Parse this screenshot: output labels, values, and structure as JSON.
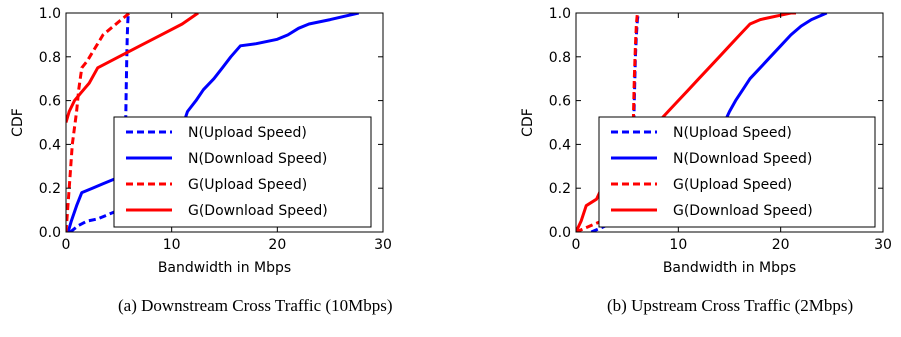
{
  "chart_data": [
    {
      "type": "line",
      "caption": "(a) Downstream Cross Traffic (10Mbps)",
      "xlabel": "Bandwidth in Mbps",
      "ylabel": "CDF",
      "xlim": [
        0,
        30
      ],
      "ylim": [
        0,
        1.0
      ],
      "xticks": [
        "0",
        "10",
        "20",
        "30"
      ],
      "yticks": [
        "0.0",
        "0.2",
        "0.4",
        "0.6",
        "0.8",
        "1.0"
      ],
      "grid": false,
      "legend_position": "lower-right",
      "series": [
        {
          "name": "N(Upload Speed)",
          "color": "#0000ff",
          "dash": "dashed",
          "x": [
            0.4,
            1.2,
            2.0,
            3.0,
            4.0,
            5.0,
            5.3,
            5.5,
            5.6,
            5.65,
            5.7,
            5.75,
            5.8,
            5.85,
            5.9
          ],
          "y": [
            0.0,
            0.03,
            0.05,
            0.06,
            0.08,
            0.1,
            0.12,
            0.2,
            0.35,
            0.5,
            0.65,
            0.8,
            0.9,
            0.96,
            1.0
          ]
        },
        {
          "name": "N(Download Speed)",
          "color": "#0000ff",
          "dash": "solid",
          "x": [
            0.2,
            0.5,
            1.0,
            1.5,
            2.5,
            3.5,
            5.0,
            6.0,
            8.0,
            10.0,
            10.8,
            11.5,
            12.3,
            13.0,
            14.0,
            14.8,
            15.6,
            16.5,
            18.0,
            20.0,
            21.0,
            22.0,
            23.0,
            25.0,
            27.7
          ],
          "y": [
            0.0,
            0.05,
            0.12,
            0.18,
            0.2,
            0.22,
            0.25,
            0.28,
            0.32,
            0.38,
            0.45,
            0.55,
            0.6,
            0.65,
            0.7,
            0.75,
            0.8,
            0.85,
            0.86,
            0.88,
            0.9,
            0.93,
            0.95,
            0.97,
            1.0
          ]
        },
        {
          "name": "G(Upload Speed)",
          "color": "#ff0000",
          "dash": "dashed",
          "x": [
            0.0,
            0.3,
            0.6,
            1.0,
            1.2,
            1.5,
            2.0,
            2.5,
            3.0,
            3.5,
            4.5,
            5.5,
            6.0
          ],
          "y": [
            0.0,
            0.2,
            0.4,
            0.55,
            0.65,
            0.75,
            0.78,
            0.82,
            0.86,
            0.9,
            0.94,
            0.98,
            1.0
          ]
        },
        {
          "name": "G(Download Speed)",
          "color": "#ff0000",
          "dash": "solid",
          "x": [
            0.0,
            0.3,
            0.8,
            1.5,
            2.2,
            3.0,
            5.0,
            7.0,
            9.0,
            11.0,
            12.5
          ],
          "y": [
            0.5,
            0.55,
            0.6,
            0.64,
            0.68,
            0.75,
            0.8,
            0.85,
            0.9,
            0.95,
            1.0
          ]
        }
      ]
    },
    {
      "type": "line",
      "caption": "(b) Upstream Cross Traffic (2Mbps)",
      "xlabel": "Bandwidth in Mbps",
      "ylabel": "CDF",
      "xlim": [
        0,
        30
      ],
      "ylim": [
        0,
        1.0
      ],
      "xticks": [
        "0",
        "10",
        "20",
        "30"
      ],
      "yticks": [
        "0.0",
        "0.2",
        "0.4",
        "0.6",
        "0.8",
        "1.0"
      ],
      "grid": false,
      "legend_position": "lower-right",
      "series": [
        {
          "name": "N(Upload Speed)",
          "color": "#0000ff",
          "dash": "dashed",
          "x": [
            1.5,
            2.5,
            3.5,
            4.5,
            5.0,
            5.4,
            5.6,
            5.7,
            5.8,
            5.9,
            6.0,
            6.1
          ],
          "y": [
            0.0,
            0.02,
            0.04,
            0.06,
            0.1,
            0.2,
            0.4,
            0.6,
            0.8,
            0.9,
            0.97,
            1.0
          ]
        },
        {
          "name": "N(Download Speed)",
          "color": "#0000ff",
          "dash": "solid",
          "x": [
            5.0,
            6.0,
            7.5,
            9.0,
            11.0,
            13.0,
            14.5,
            15.0,
            15.6,
            16.3,
            17.0,
            18.0,
            19.0,
            20.0,
            21.0,
            22.0,
            23.0,
            24.5
          ],
          "y": [
            0.15,
            0.18,
            0.22,
            0.28,
            0.36,
            0.45,
            0.5,
            0.55,
            0.6,
            0.65,
            0.7,
            0.75,
            0.8,
            0.85,
            0.9,
            0.94,
            0.97,
            1.0
          ]
        },
        {
          "name": "G(Upload Speed)",
          "color": "#ff0000",
          "dash": "dashed",
          "x": [
            0.0,
            1.0,
            2.0,
            3.0,
            4.0,
            5.0,
            5.4,
            5.6,
            5.7,
            5.8,
            5.9,
            6.0
          ],
          "y": [
            0.0,
            0.02,
            0.04,
            0.06,
            0.08,
            0.12,
            0.3,
            0.5,
            0.7,
            0.85,
            0.95,
            1.0
          ]
        },
        {
          "name": "G(Download Speed)",
          "color": "#ff0000",
          "dash": "solid",
          "x": [
            0.0,
            0.5,
            1.0,
            2.0,
            2.5,
            3.0,
            3.5,
            4.0,
            4.5,
            6.0,
            7.0,
            8.0,
            9.0,
            10.0,
            11.0,
            12.0,
            13.0,
            14.0,
            15.0,
            16.0,
            17.0,
            18.0,
            19.0,
            20.0,
            21.0,
            21.5
          ],
          "y": [
            0.0,
            0.05,
            0.12,
            0.15,
            0.2,
            0.25,
            0.32,
            0.38,
            0.43,
            0.45,
            0.47,
            0.5,
            0.55,
            0.6,
            0.65,
            0.7,
            0.75,
            0.8,
            0.85,
            0.9,
            0.95,
            0.97,
            0.98,
            0.99,
            1.0,
            1.0
          ]
        }
      ]
    }
  ]
}
